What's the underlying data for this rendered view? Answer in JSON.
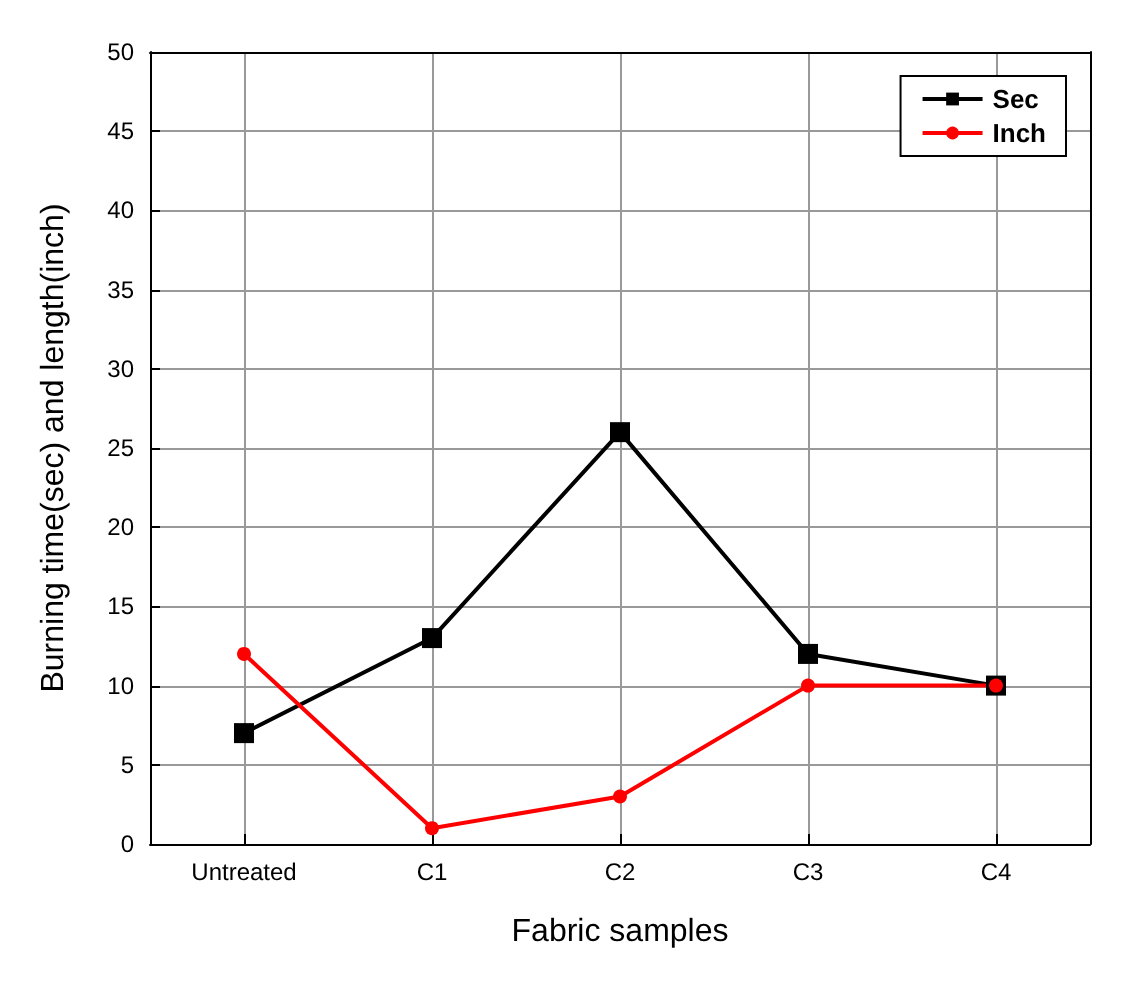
{
  "chart_data": {
    "type": "line",
    "xlabel": "Fabric samples",
    "ylabel": "Burning time(sec) and length(inch)",
    "categories": [
      "Untreated",
      "C1",
      "C2",
      "C3",
      "C4"
    ],
    "series": [
      {
        "name": "Sec",
        "color": "#000000",
        "marker": "square",
        "values": [
          7,
          13,
          26,
          12,
          10
        ]
      },
      {
        "name": "Inch",
        "color": "#ff0000",
        "marker": "circle",
        "values": [
          12,
          1,
          3,
          10,
          10
        ]
      }
    ],
    "ylim": [
      0,
      50
    ],
    "yticks": [
      0,
      5,
      10,
      15,
      20,
      25,
      30,
      35,
      40,
      45,
      50
    ],
    "grid": true,
    "legend": "top right",
    "line_style": "solid"
  }
}
